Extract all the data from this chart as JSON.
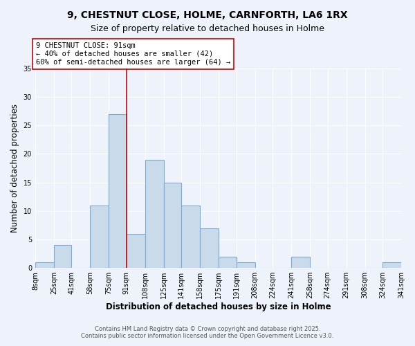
{
  "title": "9, CHESTNUT CLOSE, HOLME, CARNFORTH, LA6 1RX",
  "subtitle": "Size of property relative to detached houses in Holme",
  "xlabel": "Distribution of detached houses by size in Holme",
  "ylabel": "Number of detached properties",
  "bin_edges": [
    8,
    25,
    41,
    58,
    75,
    91,
    108,
    125,
    141,
    158,
    175,
    191,
    208,
    224,
    241,
    258,
    274,
    291,
    308,
    324,
    341
  ],
  "counts": [
    1,
    4,
    0,
    11,
    27,
    6,
    19,
    15,
    11,
    7,
    2,
    1,
    0,
    0,
    2,
    0,
    0,
    0,
    0,
    1
  ],
  "bar_color": "#c9daea",
  "bar_edge_color": "#7aabda",
  "bar_linewidth": 0.8,
  "vline_x": 91,
  "vline_color": "#cc0000",
  "vline_linewidth": 1.2,
  "annotation_line1": "9 CHESTNUT CLOSE: 91sqm",
  "annotation_line2": "← 40% of detached houses are smaller (42)",
  "annotation_line3": "60% of semi-detached houses are larger (64) →",
  "annotation_box_color": "white",
  "annotation_box_edge_color": "#cc0000",
  "ylim": [
    0,
    35
  ],
  "yticks": [
    0,
    5,
    10,
    15,
    20,
    25,
    30,
    35
  ],
  "tick_labels": [
    "8sqm",
    "25sqm",
    "41sqm",
    "58sqm",
    "75sqm",
    "91sqm",
    "108sqm",
    "125sqm",
    "141sqm",
    "158sqm",
    "175sqm",
    "191sqm",
    "208sqm",
    "224sqm",
    "241sqm",
    "258sqm",
    "274sqm",
    "291sqm",
    "308sqm",
    "324sqm",
    "341sqm"
  ],
  "footnote": "Contains HM Land Registry data © Crown copyright and database right 2025.\nContains public sector information licensed under the Open Government Licence v3.0.",
  "background_color": "#eef3fb",
  "grid_color": "#ffffff",
  "title_fontsize": 10,
  "subtitle_fontsize": 9,
  "axis_label_fontsize": 8.5,
  "tick_fontsize": 7,
  "annotation_fontsize": 7.5,
  "footnote_fontsize": 6
}
